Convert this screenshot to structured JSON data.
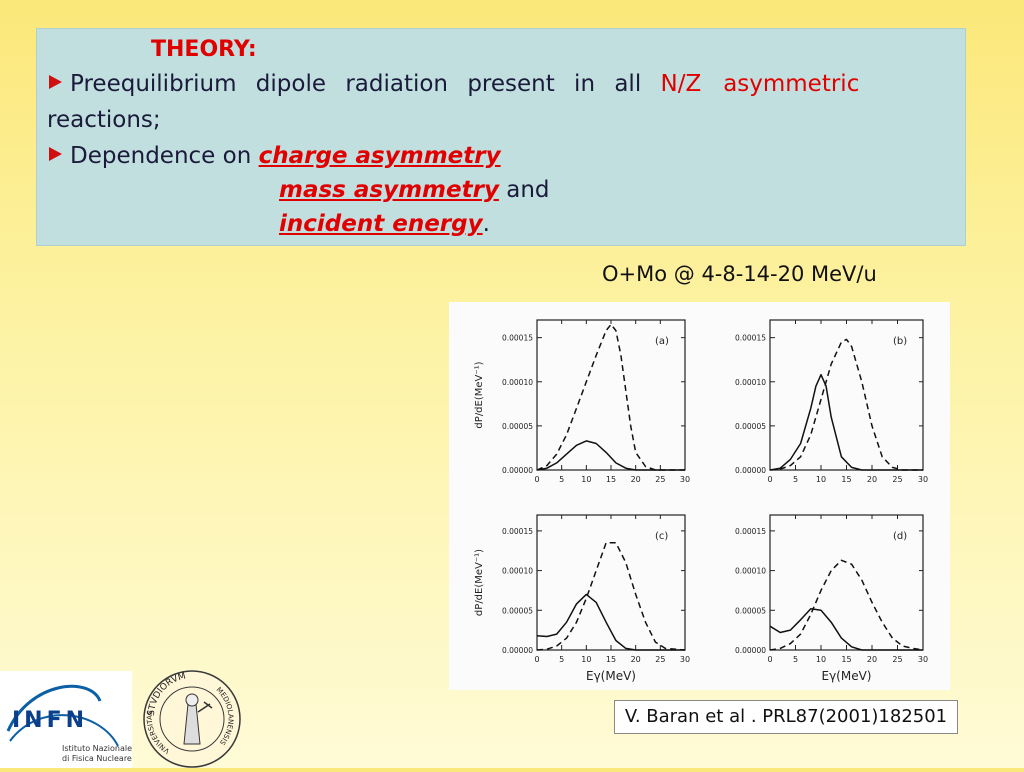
{
  "theory": {
    "title": "THEORY:",
    "line1_text": "Preequilibrium dipole radiation present in all ",
    "line1_red1": "N/Z",
    "line1_red2": "asymmetric",
    "line1_cont": "reactions;",
    "line2_text": "Dependence on ",
    "emph1": "charge asymmetry",
    "emph2": "mass asymmetry",
    "and_text": " and",
    "emph3": "incident energy",
    "period": "."
  },
  "caption": "O+Mo @ 4-8-14-20 MeV/u",
  "reference": "V. Baran et al . PRL87(2001)182501",
  "logo": {
    "name": "INFN",
    "line1": "Istituto Nazionale",
    "line2": "di Fisica Nucleare"
  },
  "seal": {
    "top": "STVDIORVM",
    "right": "MEDIOLANENSIS",
    "left": "VNIVERSITAS"
  },
  "chart_data": [
    {
      "type": "line",
      "panel": "(a)",
      "ylabel": "dP/dE(MeV⁻¹)",
      "xlabel": "",
      "xlim": [
        0,
        30
      ],
      "ylim": [
        0,
        0.00017
      ],
      "xticks": [
        "0",
        "5",
        "10",
        "15",
        "20",
        "25",
        "30"
      ],
      "yticks": [
        "0.00000",
        "0.00005",
        "0.00010",
        "0.00015"
      ],
      "series": [
        {
          "style": "solid",
          "x": [
            0,
            2,
            4,
            6,
            8,
            10,
            12,
            14,
            16,
            18,
            20,
            22,
            25,
            30
          ],
          "y": [
            0,
            2e-06,
            8e-06,
            1.8e-05,
            2.8e-05,
            3.3e-05,
            3e-05,
            2e-05,
            8e-06,
            2e-06,
            0,
            0,
            0,
            0
          ]
        },
        {
          "style": "dashed",
          "x": [
            0,
            2,
            4,
            6,
            8,
            10,
            12,
            14,
            15,
            16,
            17,
            18,
            19,
            20,
            22,
            24,
            26,
            30
          ],
          "y": [
            0,
            5e-06,
            1.8e-05,
            4e-05,
            7e-05,
            0.0001,
            0.00013,
            0.000158,
            0.000165,
            0.000158,
            0.00013,
            9e-05,
            5e-05,
            2e-05,
            4e-06,
            0,
            0,
            0
          ]
        }
      ]
    },
    {
      "type": "line",
      "panel": "(b)",
      "ylabel": "",
      "xlabel": "",
      "xlim": [
        0,
        30
      ],
      "ylim": [
        0,
        0.00017
      ],
      "xticks": [
        "0",
        "5",
        "10",
        "15",
        "20",
        "25",
        "30"
      ],
      "yticks": [
        "0.00000",
        "0.00005",
        "0.00010",
        "0.00015"
      ],
      "series": [
        {
          "style": "solid",
          "x": [
            0,
            2,
            4,
            6,
            8,
            9,
            10,
            11,
            12,
            14,
            16,
            18,
            20,
            30
          ],
          "y": [
            0,
            2e-06,
            1.2e-05,
            3e-05,
            7e-05,
            9.5e-05,
            0.000108,
            9.5e-05,
            6e-05,
            1.5e-05,
            3e-06,
            0,
            0,
            0
          ]
        },
        {
          "style": "dashed",
          "x": [
            0,
            2,
            4,
            6,
            8,
            10,
            12,
            14,
            15,
            16,
            18,
            20,
            22,
            24,
            26,
            30
          ],
          "y": [
            0,
            1e-06,
            5e-06,
            1.5e-05,
            4e-05,
            8e-05,
            0.00012,
            0.000145,
            0.000148,
            0.00014,
            0.0001,
            5e-05,
            1.5e-05,
            3e-06,
            0,
            0
          ]
        }
      ]
    },
    {
      "type": "line",
      "panel": "(c)",
      "ylabel": "dP/dE(MeV⁻¹)",
      "xlabel": "Eγ(MeV)",
      "xlim": [
        0,
        30
      ],
      "ylim": [
        0,
        0.00017
      ],
      "xticks": [
        "0",
        "5",
        "10",
        "15",
        "20",
        "25",
        "30"
      ],
      "yticks": [
        "0.00000",
        "0.00005",
        "0.00010",
        "0.00015"
      ],
      "series": [
        {
          "style": "solid",
          "x": [
            0,
            2,
            4,
            6,
            8,
            10,
            12,
            14,
            16,
            18,
            20,
            30
          ],
          "y": [
            1.8e-05,
            1.7e-05,
            2e-05,
            3.5e-05,
            5.8e-05,
            7e-05,
            6e-05,
            3.5e-05,
            1.2e-05,
            2e-06,
            0,
            0
          ]
        },
        {
          "style": "dashed",
          "x": [
            0,
            2,
            4,
            6,
            8,
            10,
            12,
            14,
            16,
            18,
            20,
            22,
            24,
            26,
            30
          ],
          "y": [
            0,
            1e-06,
            5e-06,
            1.5e-05,
            3.5e-05,
            6.5e-05,
            0.0001,
            0.000135,
            0.000135,
            0.00011,
            7e-05,
            3.5e-05,
            1e-05,
            2e-06,
            0
          ]
        }
      ]
    },
    {
      "type": "line",
      "panel": "(d)",
      "ylabel": "",
      "xlabel": "Eγ(MeV)",
      "xlim": [
        0,
        30
      ],
      "ylim": [
        0,
        0.00017
      ],
      "xticks": [
        "0",
        "5",
        "10",
        "15",
        "20",
        "25",
        "30"
      ],
      "yticks": [
        "0.00000",
        "0.00005",
        "0.00010",
        "0.00015"
      ],
      "series": [
        {
          "style": "solid",
          "x": [
            0,
            2,
            4,
            6,
            8,
            10,
            12,
            14,
            16,
            18,
            20,
            30
          ],
          "y": [
            3e-05,
            2.2e-05,
            2.5e-05,
            3.8e-05,
            5.2e-05,
            5e-05,
            3.5e-05,
            1.5e-05,
            4e-06,
            0,
            0,
            0
          ]
        },
        {
          "style": "dashed",
          "x": [
            0,
            2,
            4,
            6,
            8,
            10,
            12,
            14,
            16,
            18,
            20,
            22,
            24,
            26,
            28,
            30
          ],
          "y": [
            0,
            2e-06,
            8e-06,
            2e-05,
            4.5e-05,
            7.5e-05,
            0.0001,
            0.000113,
            0.000108,
            8.8e-05,
            6e-05,
            3.5e-05,
            1.5e-05,
            5e-06,
            2e-06,
            0
          ]
        }
      ]
    }
  ]
}
